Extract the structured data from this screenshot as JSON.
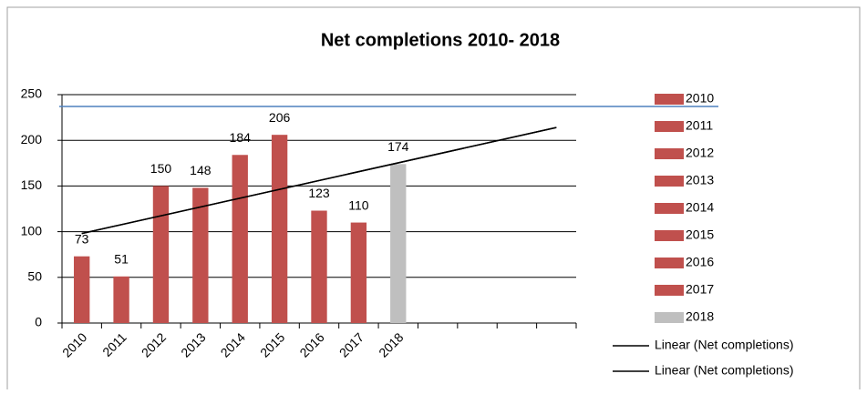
{
  "chart_data": {
    "type": "bar",
    "title": "Net completions 2010- 2018",
    "categories": [
      "2010",
      "2011",
      "2012",
      "2013",
      "2014",
      "2015",
      "2016",
      "2017",
      "2018",
      null,
      null,
      null,
      null
    ],
    "values": [
      73,
      51,
      150,
      148,
      184,
      206,
      123,
      110,
      174,
      null,
      null,
      null,
      null
    ],
    "colors": [
      "#c0504d",
      "#c0504d",
      "#c0504d",
      "#c0504d",
      "#c0504d",
      "#c0504d",
      "#c0504d",
      "#c0504d",
      "#bfbfbf",
      null,
      null,
      null,
      null
    ],
    "ylim": [
      0,
      250
    ],
    "yticks": [
      0,
      50,
      100,
      150,
      200,
      250
    ],
    "grid": true,
    "trendlines": [
      {
        "name": "Linear (Net completions)",
        "color": "#000000",
        "values": [
          98,
          214
        ]
      },
      {
        "name": "Linear (Net completions)",
        "color": "#000000",
        "values": [
          98,
          214
        ]
      }
    ],
    "reference_line": {
      "value": 237,
      "color": "#4f81bd"
    },
    "legend": "right"
  }
}
